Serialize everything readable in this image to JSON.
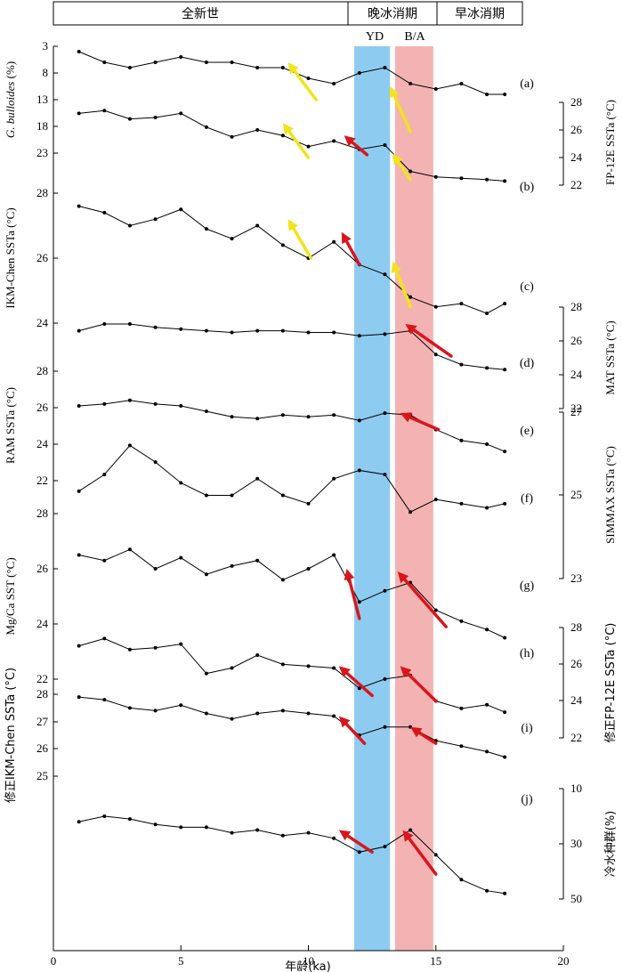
{
  "chart_data": {
    "type": "line",
    "xlabel": "年龄(ka)",
    "xlim": [
      0,
      20
    ],
    "x_ticks": [
      "0",
      "5",
      "10",
      "15",
      "20"
    ],
    "periods": [
      "全新世",
      "晚冰消期",
      "早冰消期"
    ],
    "event_labels": [
      "YD",
      "B/A"
    ],
    "shaded_bands": [
      {
        "name": "YD",
        "x": [
          11.8,
          13.2
        ],
        "color": "#8ecbf0"
      },
      {
        "name": "B/A",
        "x": [
          13.4,
          14.9
        ],
        "color": "#f3b3b3"
      }
    ],
    "panel_letters": [
      "(a)",
      "(b)",
      "(c)",
      "(d)",
      "(e)",
      "(f)",
      "(g)",
      "(h)",
      "(i)",
      "(j)"
    ],
    "axes": [
      {
        "side": "left",
        "label": "G. bulloides (%)",
        "ticks": [
          "3",
          "8",
          "13",
          "18",
          "23"
        ]
      },
      {
        "side": "right",
        "label": "FP-12E SSTa (°C)",
        "ticks": [
          "28",
          "26",
          "24",
          "22"
        ]
      },
      {
        "side": "left",
        "label": "IKM-Chen SSTa (°C)",
        "ticks": [
          "28",
          "26",
          "24"
        ]
      },
      {
        "side": "right",
        "label": "MAT SSTa (°C)",
        "ticks": [
          "28",
          "26",
          "24",
          "22"
        ]
      },
      {
        "side": "left",
        "label": "RAM SSTa (°C)",
        "ticks": [
          "28",
          "26",
          "24",
          "22"
        ]
      },
      {
        "side": "right",
        "label": "SIMMAX SSTa (°C)",
        "ticks": [
          "27",
          "25",
          "23"
        ]
      },
      {
        "side": "left",
        "label": "Mg/Ca SST (°C)",
        "ticks": [
          "28",
          "26",
          "24",
          "22"
        ]
      },
      {
        "side": "right",
        "label": "修正FP-12E SSTa (°C)",
        "ticks": [
          "28",
          "26",
          "24",
          "22"
        ]
      },
      {
        "side": "left",
        "label": "修正IKM-Chen SSTa (°C)",
        "ticks": [
          "28",
          "27",
          "26",
          "25"
        ]
      },
      {
        "side": "right",
        "label": "冷水种群(%)",
        "ticks": [
          "10",
          "30",
          "50"
        ]
      }
    ],
    "series": [
      {
        "panel": "a",
        "x": [
          1.0,
          2.0,
          3.0,
          4.0,
          5.0,
          6.0,
          7.0,
          8.0,
          9.0,
          10.0,
          11.0,
          12.0,
          13.0,
          14.0,
          15.0,
          16.0,
          17.0,
          17.7
        ],
        "y": [
          4,
          6,
          7,
          6,
          5,
          6,
          6,
          7,
          7,
          9,
          10,
          8,
          7,
          10,
          11,
          10,
          12,
          12
        ]
      },
      {
        "panel": "b",
        "x": [
          1.0,
          2.0,
          3.0,
          4.0,
          5.0,
          6.0,
          7.0,
          8.0,
          9.0,
          10.0,
          11.0,
          12.0,
          13.0,
          14.0,
          15.0,
          16.0,
          17.0,
          17.7
        ],
        "y": [
          27.2,
          27.4,
          26.8,
          26.9,
          27.2,
          26.2,
          25.5,
          26.0,
          25.6,
          24.8,
          25.2,
          24.6,
          24.9,
          23.0,
          22.6,
          22.5,
          22.4,
          22.3
        ]
      },
      {
        "panel": "c",
        "x": [
          1.0,
          2.0,
          3.0,
          4.0,
          5.0,
          6.0,
          7.0,
          8.0,
          9.0,
          10.0,
          11.0,
          12.0,
          13.0,
          14.0,
          15.0,
          16.0,
          17.0,
          17.7
        ],
        "y": [
          27.6,
          27.4,
          27.0,
          27.2,
          27.5,
          26.9,
          26.6,
          27.0,
          26.4,
          26.0,
          26.5,
          25.8,
          25.5,
          24.8,
          24.5,
          24.6,
          24.3,
          24.6
        ]
      },
      {
        "panel": "d",
        "x": [
          1.0,
          2.0,
          3.0,
          4.0,
          5.0,
          6.0,
          7.0,
          8.0,
          9.0,
          10.0,
          11.0,
          12.0,
          13.0,
          14.0,
          15.0,
          16.0,
          17.0,
          17.7
        ],
        "y": [
          26.6,
          27.0,
          27.0,
          26.8,
          26.7,
          26.6,
          26.5,
          26.6,
          26.6,
          26.5,
          26.5,
          26.3,
          26.4,
          26.6,
          25.2,
          24.6,
          24.4,
          24.3
        ]
      },
      {
        "panel": "e",
        "x": [
          1.0,
          2.0,
          3.0,
          4.0,
          5.0,
          6.0,
          7.0,
          8.0,
          9.0,
          10.0,
          11.0,
          12.0,
          13.0,
          14.0,
          15.0,
          16.0,
          17.0,
          17.7
        ],
        "y": [
          26.1,
          26.2,
          26.4,
          26.2,
          26.1,
          25.8,
          25.5,
          25.4,
          25.6,
          25.5,
          25.6,
          25.3,
          25.7,
          25.6,
          24.8,
          24.2,
          24.0,
          23.6
        ]
      },
      {
        "panel": "f",
        "x": [
          1.0,
          2.0,
          3.0,
          4.0,
          5.0,
          6.0,
          7.0,
          8.0,
          9.0,
          10.0,
          11.0,
          12.0,
          13.0,
          14.0,
          15.0,
          16.0,
          17.0,
          17.7
        ],
        "y": [
          25.1,
          25.5,
          26.2,
          25.8,
          25.3,
          25.0,
          25.0,
          25.4,
          25.0,
          24.8,
          25.4,
          25.6,
          25.5,
          24.6,
          24.9,
          24.8,
          24.7,
          24.8
        ]
      },
      {
        "panel": "g",
        "x": [
          1.0,
          2.0,
          3.0,
          4.0,
          5.0,
          6.0,
          7.0,
          8.0,
          9.0,
          10.0,
          11.0,
          12.0,
          13.0,
          14.0,
          15.0,
          16.0,
          17.0,
          17.7
        ],
        "y": [
          26.5,
          26.3,
          26.7,
          26.0,
          26.4,
          25.8,
          26.1,
          26.3,
          25.6,
          26.0,
          26.5,
          24.8,
          25.2,
          25.5,
          24.5,
          24.1,
          23.8,
          23.5
        ]
      },
      {
        "panel": "h",
        "x": [
          1.0,
          2.0,
          3.0,
          4.0,
          5.0,
          6.0,
          7.0,
          8.0,
          9.0,
          10.0,
          11.0,
          12.0,
          13.0,
          14.0,
          15.0,
          16.0,
          17.0,
          17.7
        ],
        "y": [
          27.0,
          27.4,
          26.8,
          26.9,
          27.1,
          25.5,
          25.8,
          26.5,
          26.0,
          25.9,
          25.8,
          24.7,
          25.2,
          25.4,
          24.0,
          23.6,
          23.8,
          23.4
        ]
      },
      {
        "panel": "i",
        "x": [
          1.0,
          2.0,
          3.0,
          4.0,
          5.0,
          6.0,
          7.0,
          8.0,
          9.0,
          10.0,
          11.0,
          12.0,
          13.0,
          14.0,
          15.0,
          16.0,
          17.0,
          17.7
        ],
        "y": [
          27.9,
          27.8,
          27.5,
          27.4,
          27.6,
          27.3,
          27.1,
          27.3,
          27.4,
          27.3,
          27.2,
          26.5,
          26.8,
          26.8,
          26.3,
          26.1,
          25.9,
          25.7
        ]
      },
      {
        "panel": "j",
        "x": [
          1.0,
          2.0,
          3.0,
          4.0,
          5.0,
          6.0,
          7.0,
          8.0,
          9.0,
          10.0,
          11.0,
          12.0,
          13.0,
          14.0,
          15.0,
          16.0,
          17.0,
          17.7
        ],
        "y": [
          22,
          20,
          21,
          23,
          24,
          24,
          26,
          25,
          27,
          26,
          28,
          33,
          31,
          25,
          34,
          43,
          47,
          48
        ]
      }
    ],
    "arrows": [
      {
        "panel": "a",
        "color": "yellow",
        "from": [
          10.3,
          13.0
        ],
        "to": [
          9.2,
          6.0
        ]
      },
      {
        "panel": "a",
        "color": "yellow",
        "from": [
          14.0,
          19.0
        ],
        "to": [
          13.2,
          10.5
        ]
      },
      {
        "panel": "b",
        "color": "yellow",
        "from": [
          10.0,
          24.0
        ],
        "to": [
          9.0,
          26.5
        ]
      },
      {
        "panel": "b",
        "color": "red",
        "from": [
          12.3,
          24.2
        ],
        "to": [
          11.4,
          25.6
        ]
      },
      {
        "panel": "b",
        "color": "yellow",
        "from": [
          14.0,
          22.4
        ],
        "to": [
          13.3,
          24.3
        ]
      },
      {
        "panel": "c",
        "color": "yellow",
        "from": [
          10.1,
          26.0
        ],
        "to": [
          9.2,
          27.2
        ]
      },
      {
        "panel": "c",
        "color": "red",
        "from": [
          12.0,
          25.8
        ],
        "to": [
          11.3,
          26.8
        ]
      },
      {
        "panel": "c",
        "color": "yellow",
        "from": [
          14.0,
          24.5
        ],
        "to": [
          13.3,
          25.9
        ]
      },
      {
        "panel": "d",
        "color": "red",
        "from": [
          15.6,
          25.1
        ],
        "to": [
          13.8,
          27.0
        ]
      },
      {
        "panel": "e",
        "color": "red",
        "from": [
          15.1,
          24.8
        ],
        "to": [
          13.6,
          25.7
        ]
      },
      {
        "panel": "g",
        "color": "red",
        "from": [
          12.0,
          24.2
        ],
        "to": [
          11.5,
          26.0
        ]
      },
      {
        "panel": "g",
        "color": "red",
        "from": [
          15.4,
          23.9
        ],
        "to": [
          13.5,
          25.9
        ]
      },
      {
        "panel": "h",
        "color": "red",
        "from": [
          12.5,
          24.3
        ],
        "to": [
          11.2,
          25.9
        ]
      },
      {
        "panel": "h",
        "color": "red",
        "from": [
          15.0,
          24.0
        ],
        "to": [
          13.6,
          25.9
        ]
      },
      {
        "panel": "i",
        "color": "red",
        "from": [
          12.2,
          26.2
        ],
        "to": [
          11.2,
          27.2
        ]
      },
      {
        "panel": "i",
        "color": "red",
        "from": [
          15.0,
          26.2
        ],
        "to": [
          14.0,
          26.8
        ]
      },
      {
        "panel": "j",
        "color": "red",
        "from": [
          12.5,
          33.0
        ],
        "to": [
          11.2,
          25.0
        ]
      },
      {
        "panel": "j",
        "color": "red",
        "from": [
          15.0,
          41.0
        ],
        "to": [
          13.7,
          25.0
        ]
      }
    ]
  }
}
